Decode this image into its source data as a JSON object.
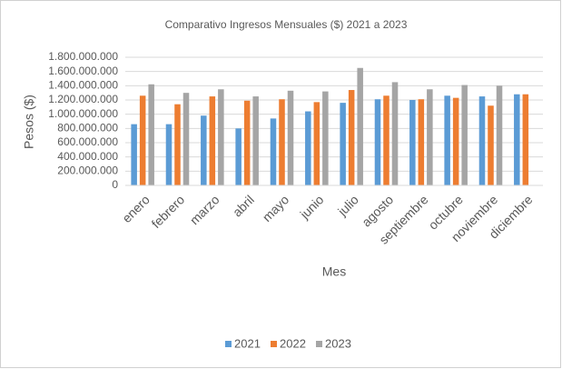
{
  "chart_data": {
    "type": "bar",
    "title": "Comparativo  Ingresos Mensuales  ($) 2021 a 2023",
    "x_label": "Mes",
    "y_label": "Pesos ($)",
    "categories": [
      "enero",
      "febrero",
      "marzo",
      "abril",
      "mayo",
      "junio",
      "julio",
      "agosto",
      "septiembre",
      "octubre",
      "noviembre",
      "diciembre"
    ],
    "series": [
      {
        "name": "2021",
        "color": "#5b9bd5",
        "values": [
          860000000,
          860000000,
          980000000,
          800000000,
          940000000,
          1040000000,
          1160000000,
          1210000000,
          1200000000,
          1260000000,
          1250000000,
          1280000000
        ]
      },
      {
        "name": "2022",
        "color": "#ed7d31",
        "values": [
          1260000000,
          1140000000,
          1250000000,
          1190000000,
          1210000000,
          1170000000,
          1340000000,
          1260000000,
          1210000000,
          1230000000,
          1120000000,
          1280000000
        ]
      },
      {
        "name": "2023",
        "color": "#a5a5a5",
        "values": [
          1420000000,
          1300000000,
          1350000000,
          1250000000,
          1330000000,
          1320000000,
          1650000000,
          1450000000,
          1350000000,
          1410000000,
          1400000000,
          null
        ]
      }
    ],
    "ylim": [
      0,
      1800000000
    ],
    "yticks": [
      0,
      {
        "value": 200000000,
        "label": "200.000.000"
      },
      {
        "value": 400000000,
        "label": "400.000.000"
      },
      {
        "value": 600000000,
        "label": "600.000.000"
      },
      {
        "value": 800000000,
        "label": "800.000.000"
      },
      {
        "value": 1000000000,
        "label": "1.000.000.000"
      },
      {
        "value": 1200000000,
        "label": "1.200.000.000"
      },
      {
        "value": 1400000000,
        "label": "1.400.000.000"
      },
      {
        "value": 1600000000,
        "label": "1.600.000.000"
      },
      {
        "value": 1800000000,
        "label": "1.800.000.000"
      }
    ],
    "grid": true,
    "legend": "bottom"
  }
}
